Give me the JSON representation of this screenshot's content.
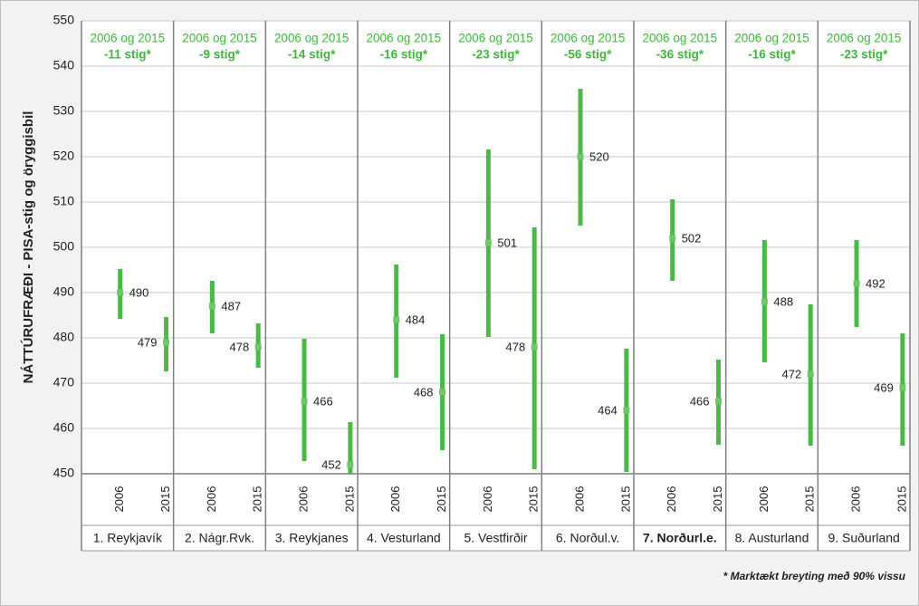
{
  "chart_data": {
    "type": "errorbar",
    "y_label": "NÁTTÚRUFRÆÐI - PISA-stig og öryggisbil",
    "categories": [
      "1. Reykjavík",
      "2. Nágr.Rvk.",
      "3. Reykjanes",
      "4. Vesturland",
      "5. Vestfirðir",
      "6. Norðul.v.",
      "7. Norðurl.e.",
      "8. Austurland",
      "9. Suðurland"
    ],
    "highlight_index": 6,
    "series": [
      {
        "name": "2006",
        "color": "#4cb848",
        "values": [
          490,
          487,
          466,
          484,
          501,
          520,
          502,
          488,
          492
        ],
        "low": [
          484.2,
          481,
          452.8,
          471.2,
          480.2,
          504.8,
          492.6,
          474.6,
          482.4
        ],
        "high": [
          495.2,
          492.6,
          479.8,
          496.2,
          521.6,
          535,
          510.6,
          501.6,
          501.6
        ]
      },
      {
        "name": "2015",
        "color": "#4cb848",
        "values": [
          479,
          478,
          452,
          468,
          478,
          464,
          466,
          472,
          469
        ],
        "low": [
          472.6,
          473.4,
          442.4,
          455.2,
          451,
          450.4,
          456.4,
          456.2,
          456.2
        ],
        "high": [
          484.6,
          483.2,
          461.4,
          480.8,
          504.4,
          477.6,
          475.2,
          487.4,
          481
        ]
      }
    ],
    "annotations": [
      {
        "label": "2006 og 2015",
        "text": "-11 stig*"
      },
      {
        "label": "2006 og 2015",
        "text": "-9 stig*"
      },
      {
        "label": "2006 og 2015",
        "text": "-14 stig*"
      },
      {
        "label": "2006 og 2015",
        "text": "-16 stig*"
      },
      {
        "label": "2006 og 2015",
        "text": "-23 stig*"
      },
      {
        "label": "2006 og 2015",
        "text": "-56 stig*"
      },
      {
        "label": "2006 og 2015",
        "text": "-36 stig*"
      },
      {
        "label": "2006 og 2015",
        "text": "-16 stig*"
      },
      {
        "label": "2006 og 2015",
        "text": "-23 stig*"
      }
    ],
    "annotation_color": "#3db83a",
    "footnote": "* Marktækt breyting með 90% vissu",
    "ylim": [
      450,
      550
    ],
    "yticks": [
      450,
      460,
      470,
      480,
      490,
      500,
      510,
      520,
      530,
      540,
      550
    ],
    "grid": true
  }
}
